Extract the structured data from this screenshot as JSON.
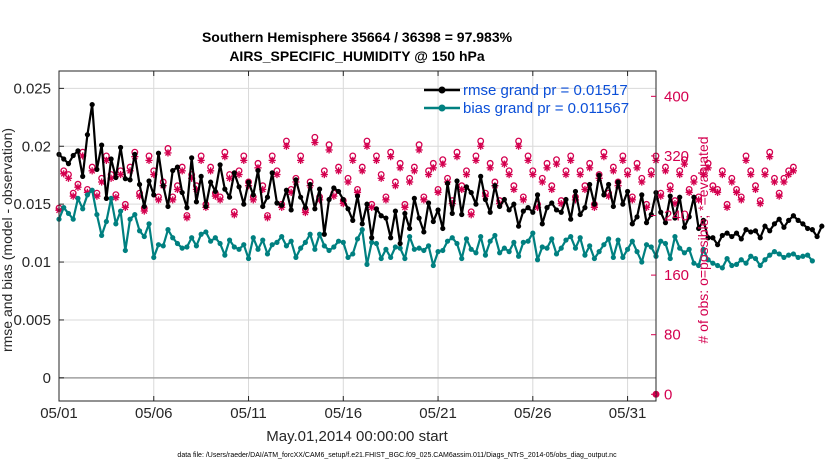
{
  "chart_data": {
    "type": "line",
    "title": "Southern Hemisphere 35664 / 36398 = 97.983%",
    "subtitle": "AIRS_SPECIFIC_HUMIDITY @ 150 hPa",
    "xlabel": "May.01,2014 00:00:00 start",
    "ylabel": "rmse and bias (model - observation)",
    "ylabel_right": "# of obs: o=possible; *=evaluated",
    "footer": "data file: /Users/raeder/DAI/ATM_forcXX/CAM6_setup/f.e21.FHIST_BGC.f09_025.CAM6assim.011/Diags_NTrS_2014-05/obs_diag_output.nc",
    "xlim": [
      1,
      32.5
    ],
    "ylim": [
      -0.002,
      0.0265
    ],
    "ylim_right": [
      -9,
      434
    ],
    "x_ticks": [
      1,
      6,
      11,
      16,
      21,
      26,
      31
    ],
    "x_tick_labels": [
      "05/01",
      "05/06",
      "05/11",
      "05/16",
      "05/21",
      "05/26",
      "05/31"
    ],
    "y_ticks": [
      0,
      0.005,
      0.01,
      0.015,
      0.02,
      0.025
    ],
    "y_tick_labels": [
      "0",
      "0.005",
      "0.01",
      "0.015",
      "0.02",
      "0.025"
    ],
    "y_ticks_right": [
      0,
      80,
      160,
      240,
      320,
      400
    ],
    "y_tick_labels_right": [
      "0",
      "80",
      "160",
      "240",
      "320",
      "400"
    ],
    "x_step_days": 0.25,
    "legend": {
      "location": "top-right"
    },
    "series": [
      {
        "name": "rmse grand pr = 0.01517",
        "color": "#000000",
        "axis": "left",
        "values": [
          0.0193,
          0.0189,
          0.0185,
          0.0192,
          0.0196,
          0.0174,
          0.021,
          0.0236,
          0.018,
          0.0201,
          0.0155,
          0.0189,
          0.0173,
          0.0199,
          0.0172,
          0.0171,
          0.0193,
          0.0167,
          0.0148,
          0.017,
          0.0158,
          0.0194,
          0.0166,
          0.0148,
          0.0179,
          0.0182,
          0.016,
          0.0147,
          0.019,
          0.0152,
          0.0174,
          0.0148,
          0.0169,
          0.0161,
          0.0184,
          0.0163,
          0.0156,
          0.0177,
          0.0165,
          0.015,
          0.0169,
          0.0158,
          0.0179,
          0.0148,
          0.0156,
          0.0177,
          0.0151,
          0.0149,
          0.0162,
          0.0145,
          0.0171,
          0.0156,
          0.0147,
          0.0167,
          0.0146,
          0.0163,
          0.0124,
          0.0154,
          0.0164,
          0.0161,
          0.0154,
          0.0146,
          0.0136,
          0.0157,
          0.0133,
          0.015,
          0.0121,
          0.0146,
          0.014,
          0.0138,
          0.0121,
          0.0144,
          0.0116,
          0.0142,
          0.0129,
          0.0155,
          0.0138,
          0.0126,
          0.0151,
          0.0135,
          0.0145,
          0.0129,
          0.0168,
          0.0142,
          0.017,
          0.0141,
          0.0165,
          0.016,
          0.015,
          0.0174,
          0.0154,
          0.0143,
          0.0166,
          0.0148,
          0.0154,
          0.0145,
          0.015,
          0.0131,
          0.0144,
          0.0147,
          0.0143,
          0.0158,
          0.0133,
          0.0147,
          0.0151,
          0.0145,
          0.0143,
          0.0154,
          0.0137,
          0.0161,
          0.0141,
          0.0147,
          0.0167,
          0.015,
          0.0175,
          0.0158,
          0.0167,
          0.0148,
          0.0169,
          0.015,
          0.0161,
          0.0133,
          0.0139,
          0.0158,
          0.0134,
          0.0141,
          0.016,
          0.0143,
          0.0134,
          0.0157,
          0.0138,
          0.0156,
          0.013,
          0.0139,
          0.0156,
          0.0129,
          0.0136,
          0.0121,
          0.0121,
          0.0115,
          0.0123,
          0.0125,
          0.0122,
          0.0125,
          0.012,
          0.0128,
          0.0126,
          0.0127,
          0.0121,
          0.0131,
          0.0127,
          0.0133,
          0.0137,
          0.013,
          0.0136,
          0.014,
          0.0136,
          0.0133,
          0.0129,
          0.0128,
          0.0122,
          0.0131
        ]
      },
      {
        "name": "bias grand pr = 0.011567",
        "color": "#008080",
        "axis": "left",
        "values": [
          0.0137,
          0.0147,
          0.0142,
          0.0137,
          0.0155,
          0.0146,
          0.0158,
          0.0162,
          0.0141,
          0.0123,
          0.0135,
          0.0155,
          0.0133,
          0.0144,
          0.011,
          0.0137,
          0.0141,
          0.0127,
          0.0122,
          0.0133,
          0.0104,
          0.0115,
          0.0114,
          0.0128,
          0.0121,
          0.0116,
          0.0112,
          0.0113,
          0.0121,
          0.0114,
          0.0124,
          0.0126,
          0.0118,
          0.0121,
          0.0116,
          0.0106,
          0.0119,
          0.0113,
          0.0111,
          0.0115,
          0.0103,
          0.0121,
          0.0111,
          0.0119,
          0.0107,
          0.0115,
          0.0117,
          0.0122,
          0.0114,
          0.0118,
          0.0104,
          0.0112,
          0.0117,
          0.0124,
          0.0111,
          0.0124,
          0.0114,
          0.011,
          0.0113,
          0.0118,
          0.0117,
          0.0104,
          0.0107,
          0.012,
          0.0128,
          0.0098,
          0.0117,
          0.0116,
          0.0103,
          0.0111,
          0.0104,
          0.0113,
          0.0112,
          0.0103,
          0.0122,
          0.0111,
          0.0112,
          0.011,
          0.0114,
          0.0097,
          0.0109,
          0.011,
          0.0118,
          0.0121,
          0.0116,
          0.0103,
          0.012,
          0.0111,
          0.0108,
          0.0122,
          0.0106,
          0.0118,
          0.0123,
          0.0108,
          0.0112,
          0.0109,
          0.0117,
          0.0105,
          0.0117,
          0.0118,
          0.0125,
          0.0102,
          0.0113,
          0.0112,
          0.012,
          0.0107,
          0.0112,
          0.0119,
          0.0122,
          0.0112,
          0.0121,
          0.0106,
          0.0114,
          0.0103,
          0.0109,
          0.0115,
          0.012,
          0.0104,
          0.0119,
          0.0104,
          0.0111,
          0.0118,
          0.0109,
          0.01,
          0.0115,
          0.0113,
          0.0105,
          0.0118,
          0.0116,
          0.0103,
          0.0122,
          0.0112,
          0.0108,
          0.0111,
          0.0099,
          0.0097,
          0.0111,
          0.0102,
          0.0099,
          0.0097,
          0.0095,
          0.0103,
          0.0097,
          0.0098,
          0.0102,
          0.0099,
          0.0105,
          0.0103,
          0.0097,
          0.0102,
          0.0106,
          0.0109,
          0.0107,
          0.0104,
          0.0106,
          0.0107,
          0.0104,
          0.0105,
          0.0106,
          0.0101
        ]
      },
      {
        "name": "possible",
        "marker": "o",
        "color": "#d4004f",
        "axis": "right",
        "values": [
          250,
          300,
          295,
          270,
          282,
          325,
          275,
          305,
          270,
          290,
          320,
          295,
          268,
          300,
          255,
          305,
          325,
          270,
          250,
          320,
          300,
          265,
          285,
          330,
          265,
          280,
          305,
          240,
          295,
          280,
          320,
          255,
          305,
          270,
          265,
          325,
          295,
          245,
          300,
          320,
          285,
          265,
          310,
          280,
          240,
          320,
          300,
          255,
          340,
          275,
          290,
          320,
          248,
          285,
          345,
          265,
          300,
          335,
          270,
          305,
          260,
          290,
          320,
          275,
          305,
          340,
          255,
          320,
          295,
          265,
          325,
          285,
          310,
          255,
          290,
          305,
          335,
          265,
          300,
          310,
          275,
          315,
          290,
          260,
          325,
          280,
          300,
          245,
          320,
          340,
          270,
          310,
          285,
          260,
          315,
          300,
          280,
          340,
          265,
          320,
          300,
          255,
          290,
          310,
          280,
          315,
          260,
          300,
          320,
          265,
          300,
          280,
          310,
          255,
          295,
          325,
          270,
          305,
          285,
          320,
          300,
          265,
          310,
          290,
          255,
          300,
          320,
          270,
          305,
          280,
          260,
          300,
          315,
          275,
          290,
          265,
          300,
          310,
          280,
          275,
          300,
          255,
          290,
          275,
          265,
          320,
          300,
          280,
          260,
          300,
          325,
          290,
          270,
          290,
          300,
          305
        ]
      },
      {
        "name": "evaluated",
        "marker": "*",
        "color": "#d4004f",
        "axis": "right",
        "values": [
          247,
          296,
          290,
          266,
          278,
          320,
          271,
          300,
          266,
          285,
          314,
          290,
          264,
          295,
          251,
          300,
          319,
          266,
          246,
          314,
          295,
          261,
          280,
          324,
          261,
          275,
          300,
          237,
          290,
          275,
          314,
          251,
          300,
          266,
          261,
          319,
          290,
          241,
          295,
          314,
          280,
          261,
          304,
          275,
          237,
          314,
          295,
          251,
          333,
          271,
          285,
          314,
          244,
          280,
          338,
          261,
          295,
          328,
          266,
          300,
          256,
          285,
          314,
          271,
          300,
          333,
          251,
          314,
          290,
          261,
          319,
          280,
          304,
          251,
          285,
          300,
          328,
          261,
          295,
          304,
          271,
          309,
          285,
          256,
          319,
          275,
          295,
          241,
          314,
          333,
          266,
          304,
          280,
          256,
          309,
          295,
          275,
          333,
          261,
          314,
          295,
          251,
          285,
          304,
          275,
          309,
          256,
          295,
          314,
          261,
          295,
          275,
          304,
          251,
          290,
          319,
          266,
          300,
          280,
          314,
          295,
          261,
          304,
          285,
          251,
          295,
          314,
          266,
          300,
          275,
          256,
          295,
          309,
          271,
          285,
          261,
          295,
          304,
          275,
          271,
          295,
          251,
          285,
          271,
          261,
          314,
          295,
          275,
          256,
          295,
          319,
          285,
          266,
          285,
          295,
          300
        ]
      }
    ]
  }
}
